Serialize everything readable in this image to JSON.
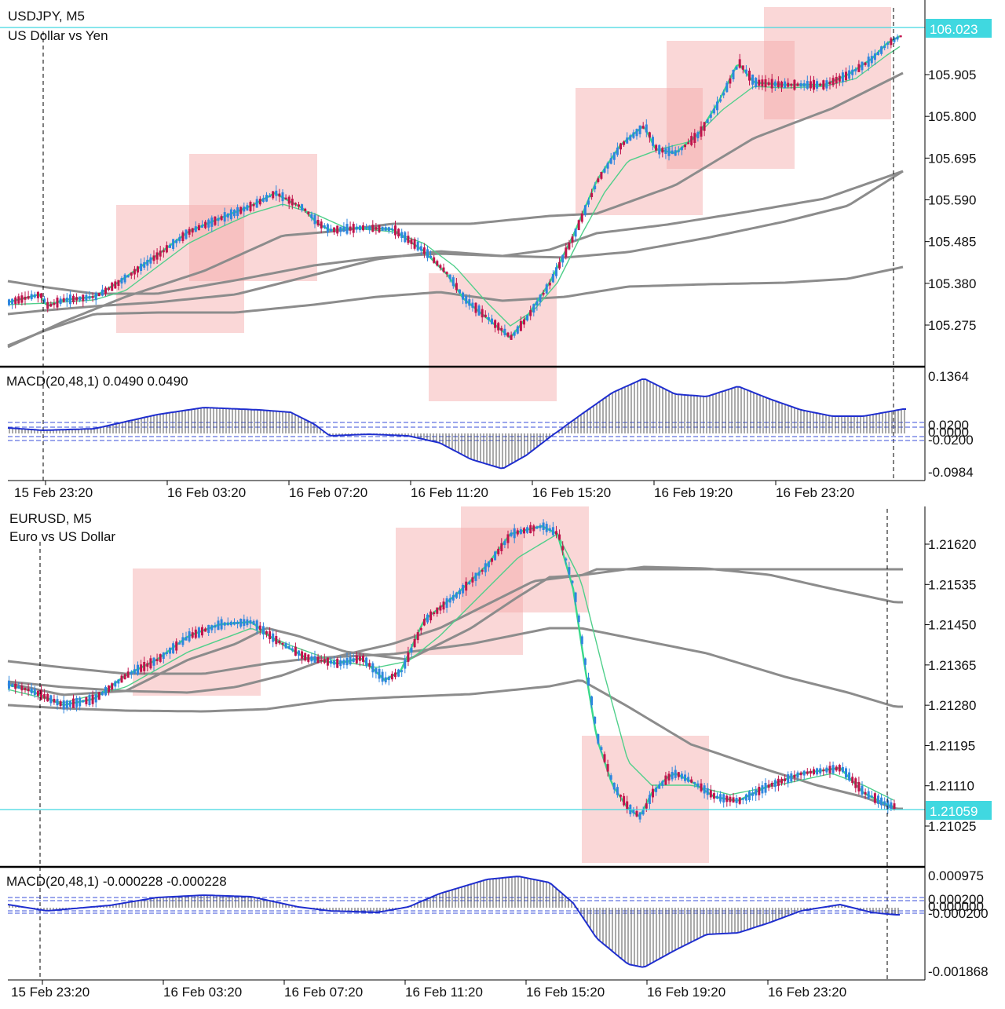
{
  "colors": {
    "background": "#ffffff",
    "bull_candle": "#2e86de",
    "bear_candle": "#c0144c",
    "fast_ma": "#39d98a",
    "slow_ma": "#4fcf8a",
    "long_ma": "#8c8c8c",
    "macd_line": "#1f2ecf",
    "macd_histogram": "#555555",
    "signal_levels": "#3a4fd9",
    "current_price_line": "#40d8e0",
    "current_price_label_bg": "#40d8e0",
    "highlight_box": "#f4a6a6",
    "panel_separator": "#000000"
  },
  "charts": [
    {
      "id": "usdjpy",
      "symbol_label": "USDJPY, M5",
      "description": "US Dollar vs Yen",
      "current_price": 106.023,
      "current_price_label": "106.023",
      "price_axis_ticks": [
        "105.905",
        "105.800",
        "105.695",
        "105.590",
        "105.485",
        "105.380",
        "105.275"
      ],
      "price_axis_values": [
        105.905,
        105.8,
        105.695,
        105.59,
        105.485,
        105.38,
        105.275
      ],
      "macd": {
        "label": "MACD(20,48,1) 0.0490 0.0490",
        "axis_top": "0.1364",
        "axis_bottom": "-0.0984",
        "level_labels": [
          "0.0200",
          "0.0000",
          "-0.0200"
        ]
      },
      "time_labels": [
        "15 Feb 23:20",
        "16 Feb 03:20",
        "16 Feb 07:20",
        "16 Feb 11:20",
        "16 Feb 15:20",
        "16 Feb 19:20",
        "16 Feb 23:20"
      ]
    },
    {
      "id": "eurusd",
      "symbol_label": "EURUSD, M5",
      "description": "Euro vs US Dollar",
      "current_price": 1.21059,
      "current_price_label": "1.21059",
      "price_axis_ticks": [
        "1.21620",
        "1.21535",
        "1.21450",
        "1.21365",
        "1.21280",
        "1.21195",
        "1.21110",
        "1.21025"
      ],
      "price_axis_values": [
        1.2162,
        1.21535,
        1.2145,
        1.21365,
        1.2128,
        1.21195,
        1.2111,
        1.21025
      ],
      "macd": {
        "label": "MACD(20,48,1) -0.000228 -0.000228",
        "axis_top": "0.000975",
        "axis_bottom": "-0.001868",
        "level_labels": [
          "0.000200",
          "0.000000",
          "-0.000200"
        ]
      },
      "time_labels": [
        "15 Feb 23:20",
        "16 Feb 03:20",
        "16 Feb 07:20",
        "16 Feb 11:20",
        "16 Feb 15:20",
        "16 Feb 19:20",
        "16 Feb 23:20"
      ]
    }
  ]
}
